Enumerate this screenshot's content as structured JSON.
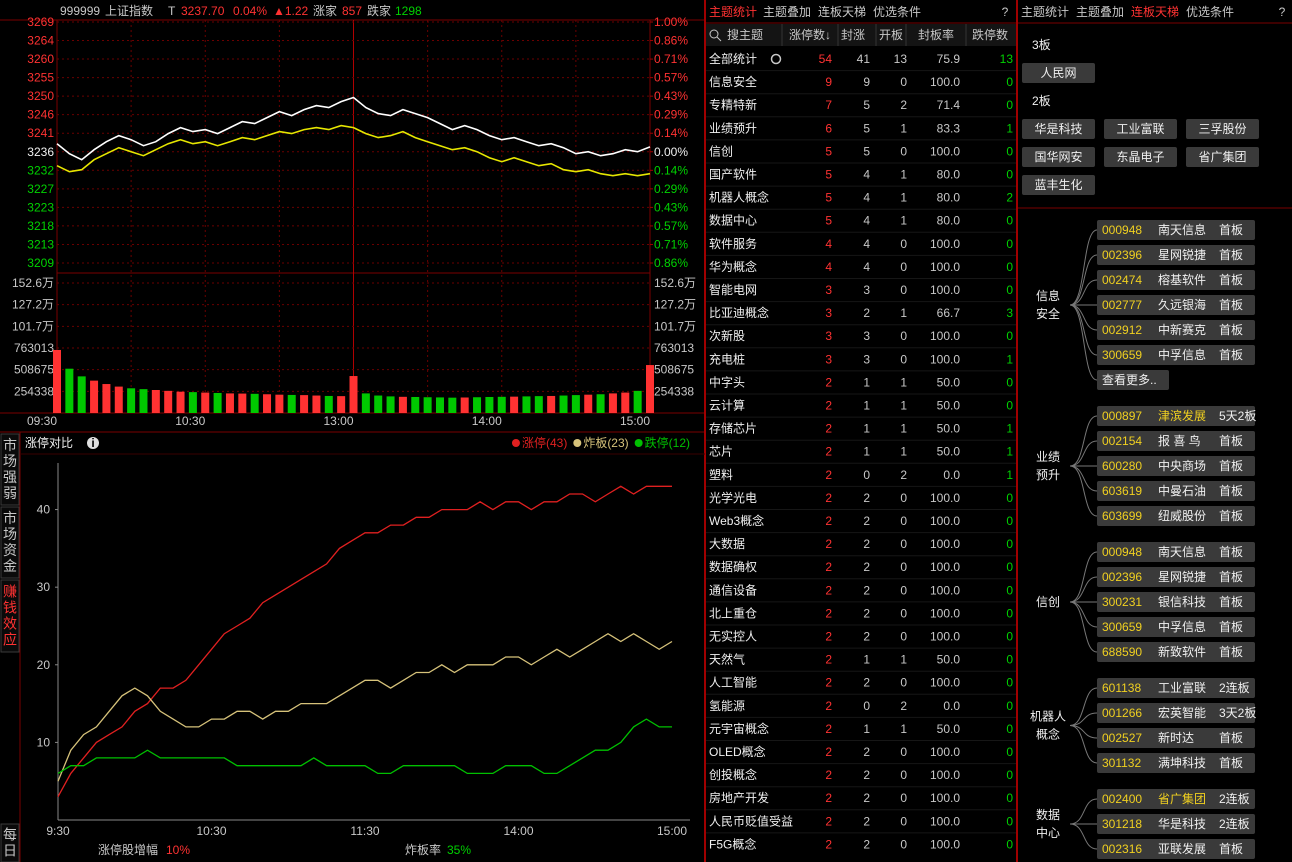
{
  "quote": {
    "code": "999999",
    "name": "上证指数",
    "flag": "T",
    "price": "3237.70",
    "pct": "0.04%",
    "change": "▲1.22",
    "up_label": "涨家",
    "up": "857",
    "down_label": "跌家",
    "down": "1298"
  },
  "chart_data": [
    {
      "type": "line",
      "categories": [
        "09:30",
        null,
        null,
        null,
        null,
        null,
        null,
        null,
        null,
        null,
        null,
        null,
        "10:30",
        null,
        null,
        null,
        null,
        null,
        null,
        null,
        null,
        null,
        null,
        null,
        "13:00",
        null,
        null,
        null,
        null,
        null,
        null,
        null,
        null,
        null,
        null,
        null,
        "14:00",
        null,
        null,
        null,
        null,
        null,
        null,
        null,
        null,
        null,
        null,
        null,
        "15:00"
      ],
      "series": [
        {
          "color": "#ffffff",
          "values": [
            3238.5,
            3236.0,
            3234.5,
            3237.0,
            3239.0,
            3240.5,
            3239.5,
            3238.0,
            3239.0,
            3241.0,
            3242.5,
            3241.5,
            3242.0,
            3241.0,
            3242.5,
            3244.0,
            3243.5,
            3245.0,
            3246.5,
            3245.5,
            3247.0,
            3248.0,
            3247.5,
            3249.0,
            3250.0,
            3247.5,
            3246.0,
            3245.5,
            3247.0,
            3246.0,
            3245.0,
            3243.5,
            3242.0,
            3243.0,
            3242.0,
            3240.5,
            3239.5,
            3240.0,
            3239.0,
            3238.0,
            3238.5,
            3237.5,
            3236.0,
            3236.5,
            3235.5,
            3236.0,
            3237.0,
            3236.5,
            3237.7
          ]
        },
        {
          "color": "#e6e600",
          "values": [
            3233.0,
            3231.5,
            3232.0,
            3234.5,
            3236.0,
            3237.5,
            3236.5,
            3235.5,
            3237.0,
            3238.5,
            3239.5,
            3238.5,
            3239.0,
            3238.0,
            3239.0,
            3240.0,
            3239.5,
            3240.5,
            3241.5,
            3241.0,
            3242.0,
            3242.5,
            3242.0,
            3243.0,
            3242.5,
            3241.0,
            3240.0,
            3240.5,
            3241.5,
            3240.0,
            3239.0,
            3238.0,
            3237.0,
            3237.5,
            3236.5,
            3235.0,
            3234.0,
            3235.0,
            3234.0,
            3233.0,
            3233.5,
            3232.0,
            3231.5,
            3232.0,
            3231.0,
            3230.5,
            3231.0,
            3230.5,
            3231.0
          ]
        }
      ],
      "ylim": [
        3208.74,
        3268.84
      ],
      "yticks": [
        {
          "value": 3268.84,
          "label": "3269"
        },
        {
          "value": 3264.22,
          "label": "3264"
        },
        {
          "value": 3259.6,
          "label": "3260"
        },
        {
          "value": 3254.97,
          "label": "3255"
        },
        {
          "value": 3250.35,
          "label": "3250"
        },
        {
          "value": 3245.73,
          "label": "3246"
        },
        {
          "value": 3241.1,
          "label": "3241"
        },
        {
          "value": 3236.48,
          "label": "3236"
        },
        {
          "value": 3231.86,
          "label": "3232"
        },
        {
          "value": 3227.23,
          "label": "3227"
        },
        {
          "value": 3222.61,
          "label": "3223"
        },
        {
          "value": 3217.99,
          "label": "3218"
        },
        {
          "value": 3213.36,
          "label": "3213"
        },
        {
          "value": 3208.74,
          "label": "3209"
        }
      ],
      "y2lim": [
        -0.8571,
        1
      ],
      "y2ticks": [
        {
          "value": 1,
          "label": "1.00%"
        },
        {
          "value": 0.8571,
          "label": "0.86%"
        },
        {
          "value": 0.7143,
          "label": "0.71%"
        },
        {
          "value": 0.5714,
          "label": "0.57%"
        },
        {
          "value": 0.4286,
          "label": "0.43%"
        },
        {
          "value": 0.2857,
          "label": "0.29%"
        },
        {
          "value": 0.1429,
          "label": "0.14%"
        },
        {
          "value": 0,
          "label": "0.00%"
        },
        {
          "value": -0.1429,
          "label": "0.14%"
        },
        {
          "value": -0.2857,
          "label": "0.29%"
        },
        {
          "value": -0.4286,
          "label": "0.43%"
        },
        {
          "value": -0.5714,
          "label": "0.57%"
        },
        {
          "value": -0.7143,
          "label": "0.71%"
        },
        {
          "value": -0.8571,
          "label": "0.86%"
        }
      ]
    },
    {
      "type": "bar",
      "values": [
        740000,
        520000,
        430000,
        380000,
        340000,
        310000,
        290000,
        280000,
        270000,
        260000,
        250000,
        245000,
        240000,
        235000,
        230000,
        228000,
        225000,
        220000,
        215000,
        212000,
        210000,
        205000,
        200000,
        198000,
        434000,
        230000,
        205000,
        195000,
        190000,
        188000,
        185000,
        183000,
        180000,
        182000,
        185000,
        188000,
        190000,
        192000,
        195000,
        198000,
        200000,
        205000,
        210000,
        215000,
        220000,
        230000,
        240000,
        260000,
        563000
      ],
      "up_color": "#ff3232",
      "down_color": "#00c800",
      "ylim": [
        0,
        1526028
      ],
      "yticks": [
        {
          "value": 1526028,
          "label": "152.6万"
        },
        {
          "value": 1271690,
          "label": "127.2万"
        },
        {
          "value": 1017352,
          "label": "101.7万"
        },
        763013,
        508675,
        254338
      ]
    },
    {
      "type": "line",
      "title": "涨停对比",
      "categories": [
        "9:30",
        null,
        null,
        null,
        null,
        null,
        null,
        null,
        null,
        null,
        null,
        null,
        "10:30",
        null,
        null,
        null,
        null,
        null,
        null,
        null,
        null,
        null,
        null,
        null,
        "11:30",
        null,
        null,
        null,
        null,
        null,
        null,
        null,
        null,
        null,
        null,
        null,
        "14:00",
        null,
        null,
        null,
        null,
        null,
        null,
        null,
        null,
        null,
        null,
        null,
        "15:00"
      ],
      "series": [
        {
          "name": "涨停(43)",
          "color": "#e02020",
          "values": [
            3,
            6,
            8,
            10,
            11,
            12,
            14,
            15,
            17,
            17,
            18,
            20,
            22,
            24,
            25,
            26,
            28,
            29,
            30,
            31,
            32,
            33,
            35,
            36,
            37,
            37,
            38,
            38,
            39,
            39,
            40,
            40,
            40,
            41,
            40,
            41,
            41,
            40,
            41,
            41,
            42,
            42,
            41,
            42,
            43,
            42,
            43,
            43,
            43
          ]
        },
        {
          "name": "炸板(23)",
          "color": "#d6c27a",
          "values": [
            5,
            9,
            11,
            12,
            14,
            16,
            17,
            16,
            14,
            13,
            12,
            12,
            13,
            13,
            14,
            14,
            13,
            14,
            14,
            15,
            15,
            15,
            16,
            17,
            18,
            18,
            17,
            18,
            19,
            19,
            20,
            19,
            20,
            20,
            20,
            21,
            21,
            20,
            21,
            22,
            21,
            22,
            23,
            24,
            23,
            24,
            23,
            22,
            23
          ]
        },
        {
          "name": "跌停(12)",
          "color": "#00c000",
          "values": [
            6,
            7,
            7,
            8,
            8,
            8,
            8,
            9,
            8,
            8,
            8,
            8,
            8,
            8,
            7,
            7,
            7,
            7,
            7,
            7,
            8,
            7,
            7,
            7,
            7,
            6,
            6,
            7,
            7,
            7,
            7,
            7,
            6,
            6,
            6,
            7,
            7,
            7,
            6,
            6,
            7,
            8,
            9,
            9,
            10,
            12,
            13,
            12,
            12
          ]
        }
      ],
      "ylim": [
        0,
        46
      ],
      "yticks": [
        10,
        20,
        30,
        40
      ],
      "footer": [
        {
          "label": "涨停股增幅",
          "value": "10%",
          "color": "#ff3232"
        },
        {
          "label": "炸板率",
          "value": "35%",
          "color": "#00d200"
        }
      ]
    }
  ],
  "side_tabs": {
    "items": [
      "市场强弱",
      "市场资金",
      "赚钱效应",
      "每日"
    ],
    "active": 2
  },
  "theme_table": {
    "tabs": [
      "主题统计",
      "主题叠加",
      "连板天梯",
      "优选条件"
    ],
    "active_tab": 0,
    "help": "?",
    "columns": [
      "搜主题",
      "涨停数↓",
      "封涨",
      "开板",
      "封板率",
      "跌停数"
    ],
    "rows": [
      [
        "全部统计",
        "54",
        "41",
        "13",
        "75.9",
        "13"
      ],
      [
        "信息安全",
        "9",
        "9",
        "0",
        "100.0",
        "0"
      ],
      [
        "专精特新",
        "7",
        "5",
        "2",
        "71.4",
        "0"
      ],
      [
        "业绩预升",
        "6",
        "5",
        "1",
        "83.3",
        "1"
      ],
      [
        "信创",
        "5",
        "5",
        "0",
        "100.0",
        "0"
      ],
      [
        "国产软件",
        "5",
        "4",
        "1",
        "80.0",
        "0"
      ],
      [
        "机器人概念",
        "5",
        "4",
        "1",
        "80.0",
        "2"
      ],
      [
        "数据中心",
        "5",
        "4",
        "1",
        "80.0",
        "0"
      ],
      [
        "软件服务",
        "4",
        "4",
        "0",
        "100.0",
        "0"
      ],
      [
        "华为概念",
        "4",
        "4",
        "0",
        "100.0",
        "0"
      ],
      [
        "智能电网",
        "3",
        "3",
        "0",
        "100.0",
        "0"
      ],
      [
        "比亚迪概念",
        "3",
        "2",
        "1",
        "66.7",
        "3"
      ],
      [
        "次新股",
        "3",
        "3",
        "0",
        "100.0",
        "0"
      ],
      [
        "充电桩",
        "3",
        "3",
        "0",
        "100.0",
        "1"
      ],
      [
        "中字头",
        "2",
        "1",
        "1",
        "50.0",
        "0"
      ],
      [
        "云计算",
        "2",
        "1",
        "1",
        "50.0",
        "0"
      ],
      [
        "存储芯片",
        "2",
        "1",
        "1",
        "50.0",
        "1"
      ],
      [
        "芯片",
        "2",
        "1",
        "1",
        "50.0",
        "1"
      ],
      [
        "塑料",
        "2",
        "0",
        "2",
        "0.0",
        "1"
      ],
      [
        "光学光电",
        "2",
        "2",
        "0",
        "100.0",
        "0"
      ],
      [
        "Web3概念",
        "2",
        "2",
        "0",
        "100.0",
        "0"
      ],
      [
        "大数据",
        "2",
        "2",
        "0",
        "100.0",
        "0"
      ],
      [
        "数据确权",
        "2",
        "2",
        "0",
        "100.0",
        "0"
      ],
      [
        "通信设备",
        "2",
        "2",
        "0",
        "100.0",
        "0"
      ],
      [
        "北上重仓",
        "2",
        "2",
        "0",
        "100.0",
        "0"
      ],
      [
        "无实控人",
        "2",
        "2",
        "0",
        "100.0",
        "0"
      ],
      [
        "天然气",
        "2",
        "1",
        "1",
        "50.0",
        "0"
      ],
      [
        "人工智能",
        "2",
        "2",
        "0",
        "100.0",
        "0"
      ],
      [
        "氢能源",
        "2",
        "0",
        "2",
        "0.0",
        "0"
      ],
      [
        "元宇宙概念",
        "2",
        "1",
        "1",
        "50.0",
        "0"
      ],
      [
        "OLED概念",
        "2",
        "2",
        "0",
        "100.0",
        "0"
      ],
      [
        "创投概念",
        "2",
        "2",
        "0",
        "100.0",
        "0"
      ],
      [
        "房地产开发",
        "2",
        "2",
        "0",
        "100.0",
        "0"
      ],
      [
        "人民币贬值受益",
        "2",
        "2",
        "0",
        "100.0",
        "0"
      ],
      [
        "F5G概念",
        "2",
        "2",
        "0",
        "100.0",
        "0"
      ]
    ]
  },
  "ladder_panel": {
    "tabs": [
      "主题统计",
      "主题叠加",
      "连板天梯",
      "优选条件"
    ],
    "active_tab": 2,
    "help": "?",
    "ladder": [
      {
        "level": "3板",
        "stocks": [
          "人民网"
        ]
      },
      {
        "level": "2板",
        "stocks": [
          "华是科技",
          "工业富联",
          "三孚股份",
          "国华网安",
          "东晶电子",
          "省广集团",
          "蓝丰生化"
        ]
      }
    ],
    "groups": [
      {
        "theme": "信息安全",
        "stocks": [
          {
            "code": "000948",
            "name": "南天信息",
            "status": "首板"
          },
          {
            "code": "002396",
            "name": "星网锐捷",
            "status": "首板"
          },
          {
            "code": "002474",
            "name": "榕基软件",
            "status": "首板"
          },
          {
            "code": "002777",
            "name": "久远银海",
            "status": "首板"
          },
          {
            "code": "002912",
            "name": "中新赛克",
            "status": "首板"
          },
          {
            "code": "300659",
            "name": "中孚信息",
            "status": "首板"
          }
        ],
        "more": "查看更多.."
      },
      {
        "theme": "业绩预升",
        "stocks": [
          {
            "code": "000897",
            "name": "津滨发展",
            "status": "5天2板",
            "highlight": true
          },
          {
            "code": "002154",
            "name": "报 喜 鸟",
            "status": "首板"
          },
          {
            "code": "600280",
            "name": "中央商场",
            "status": "首板"
          },
          {
            "code": "603619",
            "name": "中曼石油",
            "status": "首板"
          },
          {
            "code": "603699",
            "name": "纽威股份",
            "status": "首板"
          }
        ]
      },
      {
        "theme": "信创",
        "stocks": [
          {
            "code": "000948",
            "name": "南天信息",
            "status": "首板"
          },
          {
            "code": "002396",
            "name": "星网锐捷",
            "status": "首板"
          },
          {
            "code": "300231",
            "name": "银信科技",
            "status": "首板"
          },
          {
            "code": "300659",
            "name": "中孚信息",
            "status": "首板"
          },
          {
            "code": "688590",
            "name": "新致软件",
            "status": "首板"
          }
        ]
      },
      {
        "theme": "机器人概念",
        "stocks": [
          {
            "code": "601138",
            "name": "工业富联",
            "status": "2连板"
          },
          {
            "code": "001266",
            "name": "宏英智能",
            "status": "3天2板"
          },
          {
            "code": "002527",
            "name": "新时达",
            "status": "首板"
          },
          {
            "code": "301132",
            "name": "满坤科技",
            "status": "首板"
          }
        ]
      },
      {
        "theme": "数据中心",
        "stocks": [
          {
            "code": "002400",
            "name": "省广集团",
            "status": "2连板",
            "highlight": true
          },
          {
            "code": "301218",
            "name": "华是科技",
            "status": "2连板"
          },
          {
            "code": "002316",
            "name": "亚联发展",
            "status": "首板"
          }
        ]
      }
    ]
  }
}
